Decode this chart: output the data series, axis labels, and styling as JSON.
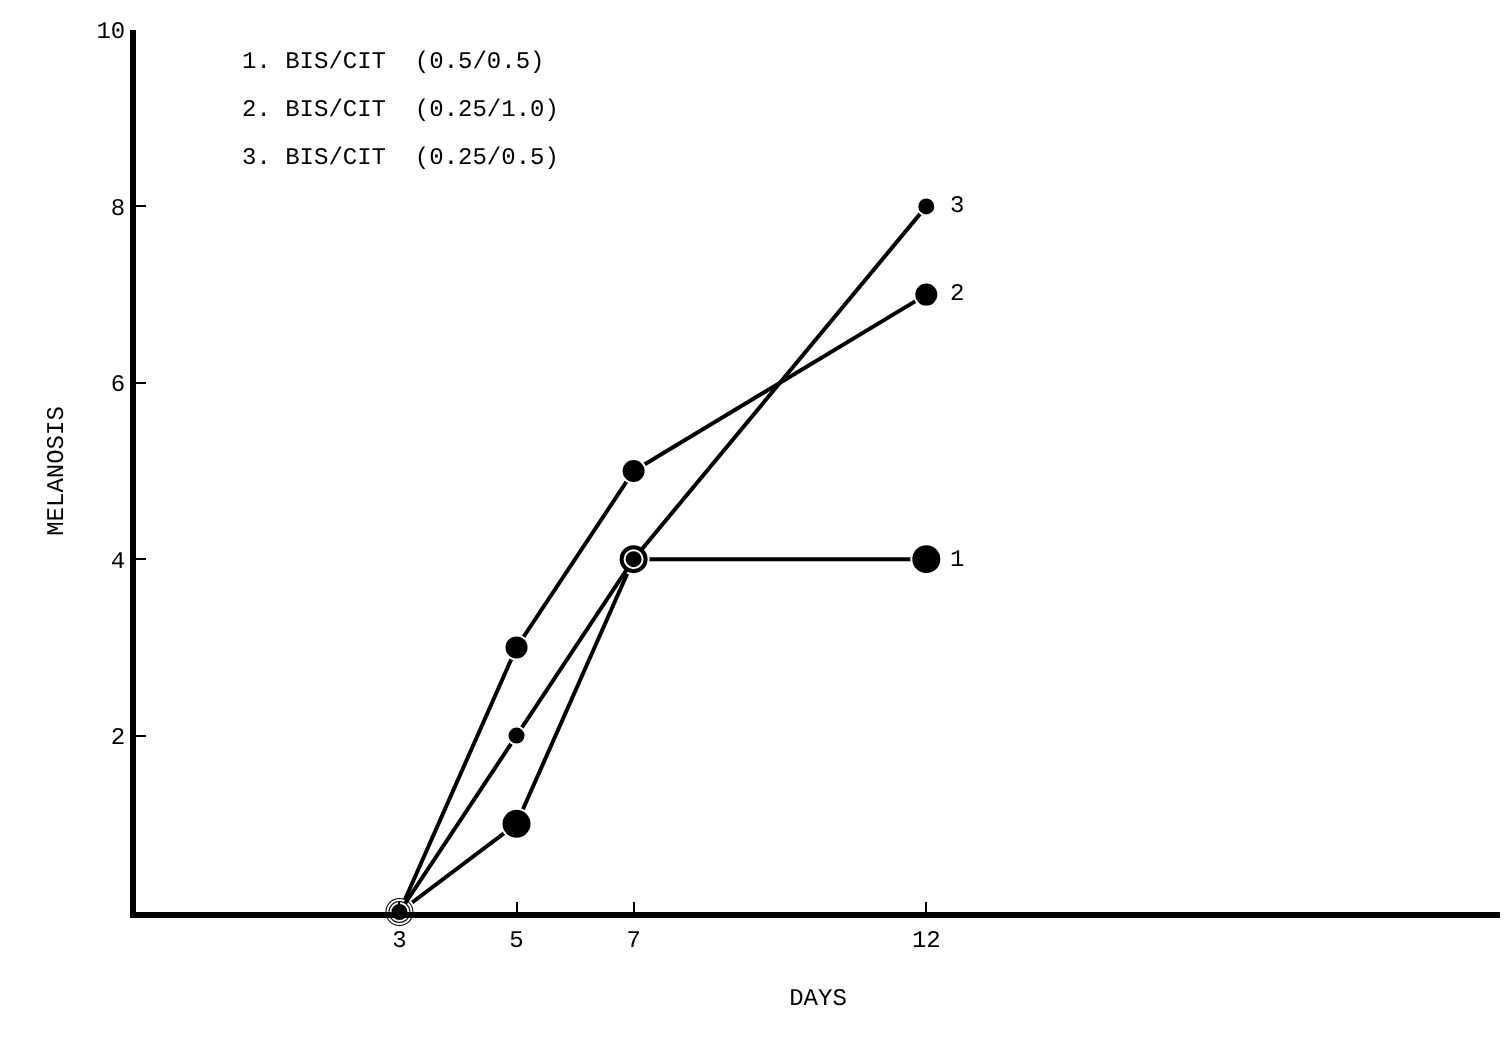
{
  "chart_data": {
    "type": "line",
    "xlabel": "DAYS",
    "ylabel": "MELANOSIS",
    "x": [
      3,
      5,
      7,
      12
    ],
    "series": [
      {
        "name": "1",
        "color": "#000000",
        "values": [
          0,
          1,
          4,
          4
        ]
      },
      {
        "name": "2",
        "color": "#000000",
        "values": [
          0,
          3,
          5,
          7
        ]
      },
      {
        "name": "3",
        "color": "#000000",
        "values": [
          0,
          2,
          4,
          8
        ]
      }
    ],
    "annotations": [
      "1. BIS/CIT  (0.5/0.5)",
      "2. BIS/CIT  (0.25/1.0)",
      "3. BIS/CIT  (0.25/0.5)"
    ],
    "xlim": [
      -1.5,
      21.8
    ],
    "xticks": [
      3,
      5,
      7,
      12
    ],
    "ylim": [
      0,
      10
    ],
    "yticks": [
      2,
      4,
      6,
      8,
      10
    ],
    "grid": false,
    "legend": false,
    "marker": "circle",
    "line_style": "solid"
  }
}
